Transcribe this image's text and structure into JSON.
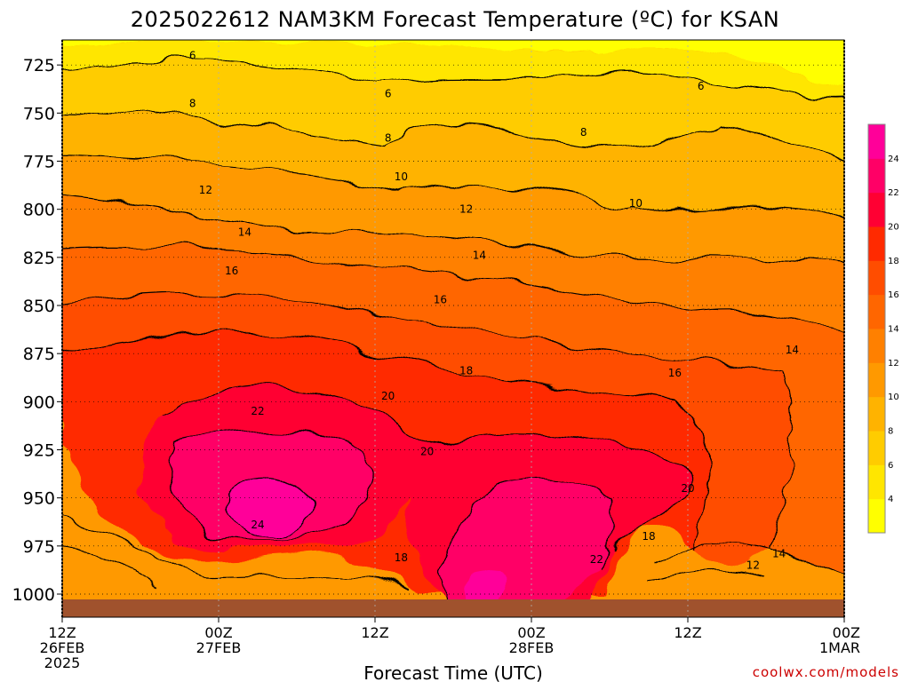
{
  "chart_data": {
    "type": "heatmap",
    "title": "2025022612 NAM3KM Forecast Temperature (ºC) for KSAN",
    "xlabel": "Forecast Time (UTC)",
    "ylabel": "",
    "credit": "coolwx.com/models",
    "y_axis": {
      "unit": "hPa",
      "ylim": [
        712,
        1012
      ],
      "ticks": [
        725,
        750,
        775,
        800,
        825,
        850,
        875,
        900,
        925,
        950,
        975,
        1000
      ]
    },
    "x_axis": {
      "ticks": [
        {
          "line1": "12Z",
          "line2": "26FEB",
          "line3": "2025"
        },
        {
          "line1": "00Z",
          "line2": "27FEB",
          "line3": ""
        },
        {
          "line1": "12Z",
          "line2": "",
          "line3": ""
        },
        {
          "line1": "00Z",
          "line2": "28FEB",
          "line3": ""
        },
        {
          "line1": "12Z",
          "line2": "",
          "line3": ""
        },
        {
          "line1": "00Z",
          "line2": "1MAR",
          "line3": ""
        }
      ],
      "hours": [
        0,
        12,
        24,
        36,
        48,
        60
      ]
    },
    "grid": true,
    "colorbar": {
      "levels": [
        2,
        4,
        6,
        8,
        10,
        12,
        14,
        16,
        18,
        20,
        22,
        24,
        26
      ],
      "tick_labels": [
        "4",
        "6",
        "8",
        "10",
        "12",
        "14",
        "16",
        "18",
        "20",
        "22",
        "24"
      ],
      "colors": [
        "#ffff00",
        "#ffe600",
        "#ffcc00",
        "#ffb300",
        "#ff9900",
        "#ff8000",
        "#ff6600",
        "#ff4d00",
        "#ff2a00",
        "#ff0033",
        "#ff0066",
        "#ff0099"
      ]
    },
    "contour_labels": [
      {
        "text": "6",
        "hour": 10,
        "p": 720
      },
      {
        "text": "6",
        "hour": 25,
        "p": 740
      },
      {
        "text": "6",
        "hour": 49,
        "p": 736
      },
      {
        "text": "8",
        "hour": 10,
        "p": 745
      },
      {
        "text": "8",
        "hour": 25,
        "p": 763
      },
      {
        "text": "8",
        "hour": 40,
        "p": 760
      },
      {
        "text": "10",
        "hour": 26,
        "p": 783
      },
      {
        "text": "10",
        "hour": 44,
        "p": 797
      },
      {
        "text": "12",
        "hour": 11,
        "p": 790
      },
      {
        "text": "12",
        "hour": 31,
        "p": 800
      },
      {
        "text": "14",
        "hour": 14,
        "p": 812
      },
      {
        "text": "14",
        "hour": 32,
        "p": 824
      },
      {
        "text": "14",
        "hour": 56,
        "p": 873
      },
      {
        "text": "14",
        "hour": 55,
        "p": 979
      },
      {
        "text": "16",
        "hour": 13,
        "p": 832
      },
      {
        "text": "16",
        "hour": 29,
        "p": 847
      },
      {
        "text": "16",
        "hour": 47,
        "p": 885
      },
      {
        "text": "18",
        "hour": 31,
        "p": 884
      },
      {
        "text": "18",
        "hour": 26,
        "p": 981
      },
      {
        "text": "18",
        "hour": 45,
        "p": 970
      },
      {
        "text": "20",
        "hour": 25,
        "p": 897
      },
      {
        "text": "20",
        "hour": 28,
        "p": 926
      },
      {
        "text": "20",
        "hour": 48,
        "p": 945
      },
      {
        "text": "22",
        "hour": 15,
        "p": 905
      },
      {
        "text": "22",
        "hour": 41,
        "p": 982
      },
      {
        "text": "24",
        "hour": 15,
        "p": 964
      },
      {
        "text": "12",
        "hour": 53,
        "p": 985
      }
    ]
  }
}
